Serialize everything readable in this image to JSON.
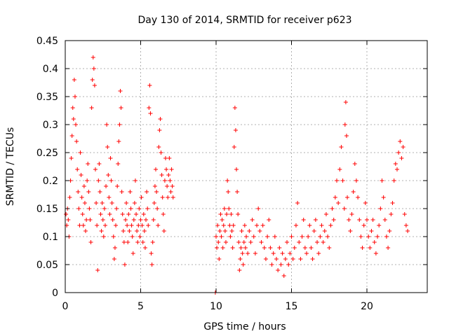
{
  "chart_data": {
    "type": "scatter",
    "title": "Day 130 of 2014, SRMTID for receiver p623",
    "xlabel": "GPS time / hours",
    "ylabel": "SRMTID / TECUs",
    "xlim": [
      0,
      24
    ],
    "ylim": [
      0,
      0.45
    ],
    "xticks": [
      0,
      5,
      10,
      15,
      20
    ],
    "xtick_labels": [
      "0",
      "5",
      "10",
      "15",
      "20"
    ],
    "yticks": [
      0,
      0.05,
      0.1,
      0.15,
      0.2,
      0.25,
      0.3,
      0.35,
      0.4,
      0.45
    ],
    "ytick_labels": [
      "0",
      "0.05",
      "0.1",
      "0.15",
      "0.2",
      "0.25",
      "0.3",
      "0.35",
      "0.4",
      "0.45"
    ],
    "grid": true,
    "marker": "+",
    "color": "#ff0000",
    "series": [
      {
        "name": "SRMTID",
        "points": [
          [
            0.05,
            0.14
          ],
          [
            0.1,
            0.12
          ],
          [
            0.15,
            0.15
          ],
          [
            0.2,
            0.13
          ],
          [
            0.25,
            0.1
          ],
          [
            0.3,
            0.17
          ],
          [
            0.35,
            0.2
          ],
          [
            0.4,
            0.24
          ],
          [
            0.45,
            0.28
          ],
          [
            0.5,
            0.33
          ],
          [
            0.55,
            0.31
          ],
          [
            0.6,
            0.38
          ],
          [
            0.65,
            0.35
          ],
          [
            0.7,
            0.3
          ],
          [
            0.75,
            0.27
          ],
          [
            0.8,
            0.22
          ],
          [
            0.85,
            0.18
          ],
          [
            0.9,
            0.15
          ],
          [
            0.95,
            0.12
          ],
          [
            1.0,
            0.25
          ],
          [
            1.05,
            0.21
          ],
          [
            1.1,
            0.17
          ],
          [
            1.15,
            0.14
          ],
          [
            1.2,
            0.12
          ],
          [
            1.25,
            0.19
          ],
          [
            1.3,
            0.16
          ],
          [
            1.35,
            0.11
          ],
          [
            1.4,
            0.13
          ],
          [
            1.45,
            0.2
          ],
          [
            1.5,
            0.23
          ],
          [
            1.55,
            0.18
          ],
          [
            1.6,
            0.15
          ],
          [
            1.65,
            0.13
          ],
          [
            1.7,
            0.09
          ],
          [
            1.75,
            0.33
          ],
          [
            1.8,
            0.38
          ],
          [
            1.85,
            0.42
          ],
          [
            1.9,
            0.4
          ],
          [
            1.95,
            0.37
          ],
          [
            2.0,
            0.22
          ],
          [
            2.05,
            0.16
          ],
          [
            2.1,
            0.12
          ],
          [
            2.15,
            0.04
          ],
          [
            2.2,
            0.2
          ],
          [
            2.25,
            0.23
          ],
          [
            2.3,
            0.18
          ],
          [
            2.35,
            0.14
          ],
          [
            2.4,
            0.11
          ],
          [
            2.45,
            0.16
          ],
          [
            2.5,
            0.13
          ],
          [
            2.55,
            0.1
          ],
          [
            2.6,
            0.15
          ],
          [
            2.65,
            0.12
          ],
          [
            2.7,
            0.19
          ],
          [
            2.75,
            0.3
          ],
          [
            2.8,
            0.26
          ],
          [
            2.85,
            0.21
          ],
          [
            2.9,
            0.17
          ],
          [
            2.95,
            0.14
          ],
          [
            3.0,
            0.24
          ],
          [
            3.05,
            0.2
          ],
          [
            3.1,
            0.16
          ],
          [
            3.15,
            0.13
          ],
          [
            3.2,
            0.1
          ],
          [
            3.25,
            0.06
          ],
          [
            3.3,
            0.08
          ],
          [
            3.35,
            0.12
          ],
          [
            3.4,
            0.15
          ],
          [
            3.45,
            0.19
          ],
          [
            3.5,
            0.23
          ],
          [
            3.55,
            0.27
          ],
          [
            3.6,
            0.3
          ],
          [
            3.65,
            0.36
          ],
          [
            3.7,
            0.33
          ],
          [
            3.75,
            0.18
          ],
          [
            3.8,
            0.14
          ],
          [
            3.85,
            0.11
          ],
          [
            3.9,
            0.09
          ],
          [
            3.95,
            0.05
          ],
          [
            4.0,
            0.13
          ],
          [
            4.05,
            0.16
          ],
          [
            4.1,
            0.12
          ],
          [
            4.15,
            0.09
          ],
          [
            4.2,
            0.14
          ],
          [
            4.25,
            0.11
          ],
          [
            4.3,
            0.18
          ],
          [
            4.35,
            0.15
          ],
          [
            4.4,
            0.12
          ],
          [
            4.45,
            0.1
          ],
          [
            4.5,
            0.07
          ],
          [
            4.55,
            0.13
          ],
          [
            4.6,
            0.16
          ],
          [
            4.65,
            0.2
          ],
          [
            4.7,
            0.14
          ],
          [
            4.75,
            0.11
          ],
          [
            4.8,
            0.09
          ],
          [
            4.85,
            0.12
          ],
          [
            4.9,
            0.15
          ],
          [
            4.95,
            0.1
          ],
          [
            5.0,
            0.13
          ],
          [
            5.05,
            0.17
          ],
          [
            5.1,
            0.12
          ],
          [
            5.15,
            0.09
          ],
          [
            5.2,
            0.14
          ],
          [
            5.25,
            0.11
          ],
          [
            5.3,
            0.08
          ],
          [
            5.35,
            0.13
          ],
          [
            5.4,
            0.18
          ],
          [
            5.45,
            0.15
          ],
          [
            5.5,
            0.12
          ],
          [
            5.55,
            0.33
          ],
          [
            5.6,
            0.37
          ],
          [
            5.65,
            0.32
          ],
          [
            5.7,
            0.07
          ],
          [
            5.75,
            0.05
          ],
          [
            5.8,
            0.09
          ],
          [
            5.85,
            0.13
          ],
          [
            5.9,
            0.16
          ],
          [
            5.95,
            0.19
          ],
          [
            6.0,
            0.22
          ],
          [
            6.05,
            0.18
          ],
          [
            6.1,
            0.15
          ],
          [
            6.15,
            0.12
          ],
          [
            6.2,
            0.26
          ],
          [
            6.25,
            0.29
          ],
          [
            6.3,
            0.31
          ],
          [
            6.35,
            0.25
          ],
          [
            6.4,
            0.21
          ],
          [
            6.45,
            0.17
          ],
          [
            6.5,
            0.14
          ],
          [
            6.55,
            0.11
          ],
          [
            6.6,
            0.2
          ],
          [
            6.65,
            0.24
          ],
          [
            6.7,
            0.22
          ],
          [
            6.75,
            0.19
          ],
          [
            6.8,
            0.17
          ],
          [
            6.85,
            0.21
          ],
          [
            6.9,
            0.24
          ],
          [
            6.95,
            0.2
          ],
          [
            7.0,
            0.18
          ],
          [
            7.05,
            0.22
          ],
          [
            7.1,
            0.19
          ],
          [
            7.15,
            0.17
          ],
          [
            9.95,
            0.0
          ],
          [
            10.0,
            0.1
          ],
          [
            10.05,
            0.08
          ],
          [
            10.1,
            0.12
          ],
          [
            10.15,
            0.09
          ],
          [
            10.2,
            0.06
          ],
          [
            10.25,
            0.11
          ],
          [
            10.3,
            0.14
          ],
          [
            10.35,
            0.1
          ],
          [
            10.4,
            0.13
          ],
          [
            10.45,
            0.08
          ],
          [
            10.5,
            0.12
          ],
          [
            10.55,
            0.15
          ],
          [
            10.6,
            0.11
          ],
          [
            10.65,
            0.09
          ],
          [
            10.7,
            0.14
          ],
          [
            10.75,
            0.2
          ],
          [
            10.8,
            0.18
          ],
          [
            10.85,
            0.15
          ],
          [
            10.9,
            0.12
          ],
          [
            10.95,
            0.1
          ],
          [
            11.0,
            0.14
          ],
          [
            11.05,
            0.11
          ],
          [
            11.1,
            0.08
          ],
          [
            11.15,
            0.12
          ],
          [
            11.2,
            0.26
          ],
          [
            11.25,
            0.33
          ],
          [
            11.3,
            0.29
          ],
          [
            11.35,
            0.22
          ],
          [
            11.4,
            0.18
          ],
          [
            11.45,
            0.14
          ],
          [
            11.5,
            0.09
          ],
          [
            11.55,
            0.04
          ],
          [
            11.6,
            0.06
          ],
          [
            11.65,
            0.08
          ],
          [
            11.7,
            0.11
          ],
          [
            11.75,
            0.07
          ],
          [
            11.8,
            0.05
          ],
          [
            11.85,
            0.09
          ],
          [
            11.9,
            0.12
          ],
          [
            11.95,
            0.08
          ],
          [
            12.0,
            0.1
          ],
          [
            12.1,
            0.07
          ],
          [
            12.2,
            0.11
          ],
          [
            12.3,
            0.09
          ],
          [
            12.4,
            0.13
          ],
          [
            12.5,
            0.1
          ],
          [
            12.6,
            0.07
          ],
          [
            12.7,
            0.12
          ],
          [
            12.8,
            0.15
          ],
          [
            12.9,
            0.11
          ],
          [
            13.0,
            0.09
          ],
          [
            13.1,
            0.12
          ],
          [
            13.2,
            0.08
          ],
          [
            13.3,
            0.06
          ],
          [
            13.4,
            0.1
          ],
          [
            13.5,
            0.13
          ],
          [
            13.6,
            0.08
          ],
          [
            13.7,
            0.05
          ],
          [
            13.8,
            0.07
          ],
          [
            13.9,
            0.1
          ],
          [
            14.0,
            0.06
          ],
          [
            14.1,
            0.04
          ],
          [
            14.2,
            0.08
          ],
          [
            14.3,
            0.05
          ],
          [
            14.4,
            0.07
          ],
          [
            14.5,
            0.03
          ],
          [
            14.6,
            0.06
          ],
          [
            14.7,
            0.09
          ],
          [
            14.8,
            0.05
          ],
          [
            14.9,
            0.07
          ],
          [
            15.0,
            0.1
          ],
          [
            15.1,
            0.06
          ],
          [
            15.2,
            0.08
          ],
          [
            15.3,
            0.12
          ],
          [
            15.4,
            0.16
          ],
          [
            15.5,
            0.09
          ],
          [
            15.6,
            0.06
          ],
          [
            15.7,
            0.1
          ],
          [
            15.8,
            0.13
          ],
          [
            15.9,
            0.08
          ],
          [
            16.0,
            0.07
          ],
          [
            16.1,
            0.1
          ],
          [
            16.2,
            0.12
          ],
          [
            16.3,
            0.08
          ],
          [
            16.4,
            0.06
          ],
          [
            16.5,
            0.11
          ],
          [
            16.6,
            0.13
          ],
          [
            16.7,
            0.09
          ],
          [
            16.8,
            0.07
          ],
          [
            16.9,
            0.1
          ],
          [
            17.0,
            0.12
          ],
          [
            17.1,
            0.09
          ],
          [
            17.2,
            0.11
          ],
          [
            17.3,
            0.14
          ],
          [
            17.4,
            0.1
          ],
          [
            17.5,
            0.08
          ],
          [
            17.6,
            0.12
          ],
          [
            17.7,
            0.15
          ],
          [
            17.8,
            0.13
          ],
          [
            17.9,
            0.17
          ],
          [
            18.0,
            0.2
          ],
          [
            18.1,
            0.16
          ],
          [
            18.2,
            0.22
          ],
          [
            18.3,
            0.26
          ],
          [
            18.4,
            0.2
          ],
          [
            18.5,
            0.15
          ],
          [
            18.55,
            0.3
          ],
          [
            18.6,
            0.34
          ],
          [
            18.65,
            0.28
          ],
          [
            18.7,
            0.17
          ],
          [
            18.8,
            0.13
          ],
          [
            18.9,
            0.11
          ],
          [
            19.0,
            0.14
          ],
          [
            19.1,
            0.18
          ],
          [
            19.2,
            0.23
          ],
          [
            19.3,
            0.2
          ],
          [
            19.4,
            0.17
          ],
          [
            19.5,
            0.13
          ],
          [
            19.6,
            0.1
          ],
          [
            19.7,
            0.08
          ],
          [
            19.8,
            0.12
          ],
          [
            19.9,
            0.16
          ],
          [
            20.0,
            0.13
          ],
          [
            20.1,
            0.1
          ],
          [
            20.2,
            0.08
          ],
          [
            20.3,
            0.11
          ],
          [
            20.4,
            0.13
          ],
          [
            20.5,
            0.09
          ],
          [
            20.6,
            0.07
          ],
          [
            20.7,
            0.1
          ],
          [
            20.8,
            0.12
          ],
          [
            20.9,
            0.15
          ],
          [
            21.0,
            0.2
          ],
          [
            21.1,
            0.17
          ],
          [
            21.2,
            0.13
          ],
          [
            21.3,
            0.1
          ],
          [
            21.4,
            0.08
          ],
          [
            21.5,
            0.11
          ],
          [
            21.6,
            0.14
          ],
          [
            21.7,
            0.16
          ],
          [
            21.8,
            0.2
          ],
          [
            21.9,
            0.23
          ],
          [
            22.0,
            0.22
          ],
          [
            22.1,
            0.25
          ],
          [
            22.2,
            0.27
          ],
          [
            22.3,
            0.24
          ],
          [
            22.4,
            0.26
          ],
          [
            22.5,
            0.14
          ],
          [
            22.6,
            0.12
          ],
          [
            22.7,
            0.11
          ]
        ]
      }
    ]
  }
}
